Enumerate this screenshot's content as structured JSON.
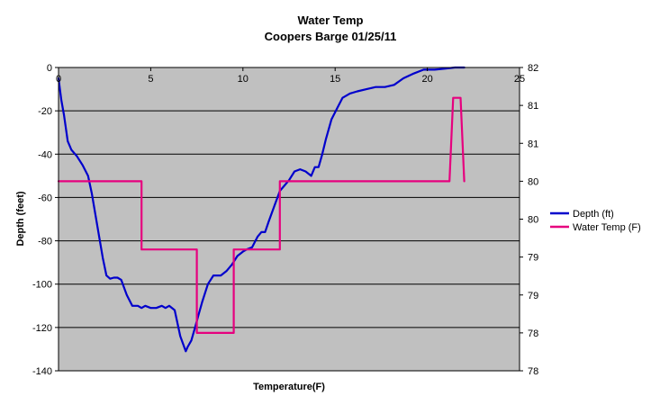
{
  "chart_data": {
    "type": "line",
    "title": "Water Temp",
    "subtitle": "Coopers Barge 01/25/11",
    "xlabel": "Temperature(F)",
    "ylabel": "Depth (feet)",
    "xlim": [
      0,
      25
    ],
    "ylim": [
      -140,
      0
    ],
    "y2lim": [
      78,
      82
    ],
    "x_ticks": [
      "0",
      "5",
      "10",
      "15",
      "20",
      "25"
    ],
    "y_ticks": [
      "0",
      "-20",
      "-40",
      "-60",
      "-80",
      "-100",
      "-120",
      "-140"
    ],
    "y2_ticks": [
      "82",
      "81",
      "81",
      "80",
      "80",
      "79",
      "79",
      "78",
      "78"
    ],
    "grid": true,
    "legend_position": "right",
    "colors": {
      "plot_bg": "#c0c0c0",
      "depth": "#0000cc",
      "water_temp": "#e6007e"
    },
    "series": [
      {
        "name": "Depth (ft)",
        "axis": "left",
        "x": [
          0,
          0.15,
          0.3,
          0.5,
          0.7,
          1,
          1.3,
          1.6,
          1.8,
          2,
          2.2,
          2.4,
          2.6,
          2.8,
          3,
          3.2,
          3.4,
          3.7,
          4,
          4.2,
          4.3,
          4.5,
          4.7,
          5,
          5.3,
          5.6,
          5.8,
          6,
          6.3,
          6.6,
          6.9,
          7,
          7.2,
          7.4,
          7.6,
          7.8,
          8.1,
          8.4,
          8.8,
          9.1,
          9.4,
          9.7,
          10,
          10.2,
          10.5,
          10.8,
          11,
          11.2,
          11.4,
          11.7,
          12,
          12.2,
          12.5,
          12.8,
          13.1,
          13.4,
          13.7,
          13.9,
          14.1,
          14.3,
          14.5,
          14.8,
          15.1,
          15.4,
          15.8,
          16.2,
          16.7,
          17.2,
          17.7,
          18.2,
          18.7,
          19.2,
          19.8,
          20.4,
          21,
          21.5,
          22
        ],
        "y": [
          -5,
          -15,
          -22,
          -34,
          -38,
          -41,
          -45,
          -50,
          -58,
          -68,
          -78,
          -88,
          -96,
          -97.5,
          -97,
          -97,
          -98,
          -105,
          -110,
          -110,
          -110,
          -111,
          -110,
          -111,
          -111,
          -110,
          -111,
          -110,
          -112,
          -124,
          -131,
          -129,
          -126,
          -120,
          -114,
          -108,
          -100,
          -96,
          -96,
          -94,
          -91,
          -87,
          -85,
          -84,
          -83,
          -78,
          -76,
          -76,
          -71,
          -64,
          -57,
          -55,
          -52,
          -48,
          -47,
          -48,
          -50,
          -46,
          -46,
          -40,
          -33,
          -24,
          -19,
          -14,
          -12,
          -11,
          -10,
          -9,
          -9,
          -8,
          -5,
          -3,
          -1,
          -1,
          -0.5,
          0,
          0
        ]
      },
      {
        "name": "Water Temp (F)",
        "axis": "right",
        "x": [
          0,
          4.5,
          4.5,
          7.5,
          7.5,
          9.5,
          9.5,
          12,
          12,
          21.2,
          21.4,
          21.8,
          22
        ],
        "y": [
          80.5,
          80.5,
          79.6,
          79.6,
          78.5,
          78.5,
          79.6,
          79.6,
          80.5,
          80.5,
          81.6,
          81.6,
          80.5
        ]
      }
    ]
  }
}
